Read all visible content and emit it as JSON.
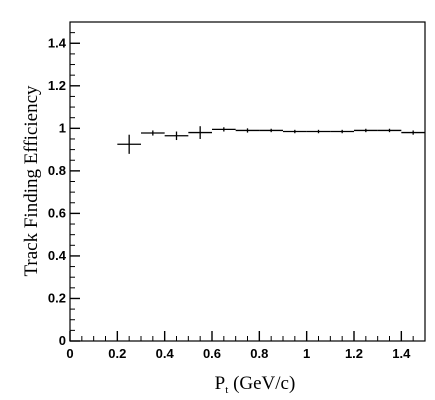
{
  "chart_data": {
    "type": "scatter",
    "title": "",
    "xlabel": "P",
    "xlabel_subscript": "t",
    "xlabel_suffix": " (GeV/c)",
    "ylabel": "Track Finding Efficiency",
    "xlim": [
      0,
      1.5
    ],
    "ylim": [
      0,
      1.5
    ],
    "x_ticks": [
      "0",
      "0.2",
      "0.4",
      "0.6",
      "0.8",
      "1",
      "1.2",
      "1.4"
    ],
    "y_ticks": [
      "0",
      "0.2",
      "0.4",
      "0.6",
      "0.8",
      "1",
      "1.2",
      "1.4"
    ],
    "grid": false,
    "series": [
      {
        "points": [
          {
            "x": 0.25,
            "y": 0.925,
            "xerr": 0.05,
            "yerr": 0.045
          },
          {
            "x": 0.35,
            "y": 0.978,
            "xerr": 0.05,
            "yerr": 0.012
          },
          {
            "x": 0.45,
            "y": 0.965,
            "xerr": 0.05,
            "yerr": 0.02
          },
          {
            "x": 0.55,
            "y": 0.98,
            "xerr": 0.05,
            "yerr": 0.03
          },
          {
            "x": 0.65,
            "y": 0.995,
            "xerr": 0.05,
            "yerr": 0.01
          },
          {
            "x": 0.75,
            "y": 0.99,
            "xerr": 0.05,
            "yerr": 0.01
          },
          {
            "x": 0.85,
            "y": 0.99,
            "xerr": 0.05,
            "yerr": 0.008
          },
          {
            "x": 0.95,
            "y": 0.985,
            "xerr": 0.05,
            "yerr": 0.008
          },
          {
            "x": 1.05,
            "y": 0.985,
            "xerr": 0.05,
            "yerr": 0.008
          },
          {
            "x": 1.15,
            "y": 0.985,
            "xerr": 0.05,
            "yerr": 0.008
          },
          {
            "x": 1.25,
            "y": 0.99,
            "xerr": 0.05,
            "yerr": 0.008
          },
          {
            "x": 1.35,
            "y": 0.99,
            "xerr": 0.05,
            "yerr": 0.008
          },
          {
            "x": 1.45,
            "y": 0.98,
            "xerr": 0.05,
            "yerr": 0.01
          }
        ]
      }
    ]
  }
}
